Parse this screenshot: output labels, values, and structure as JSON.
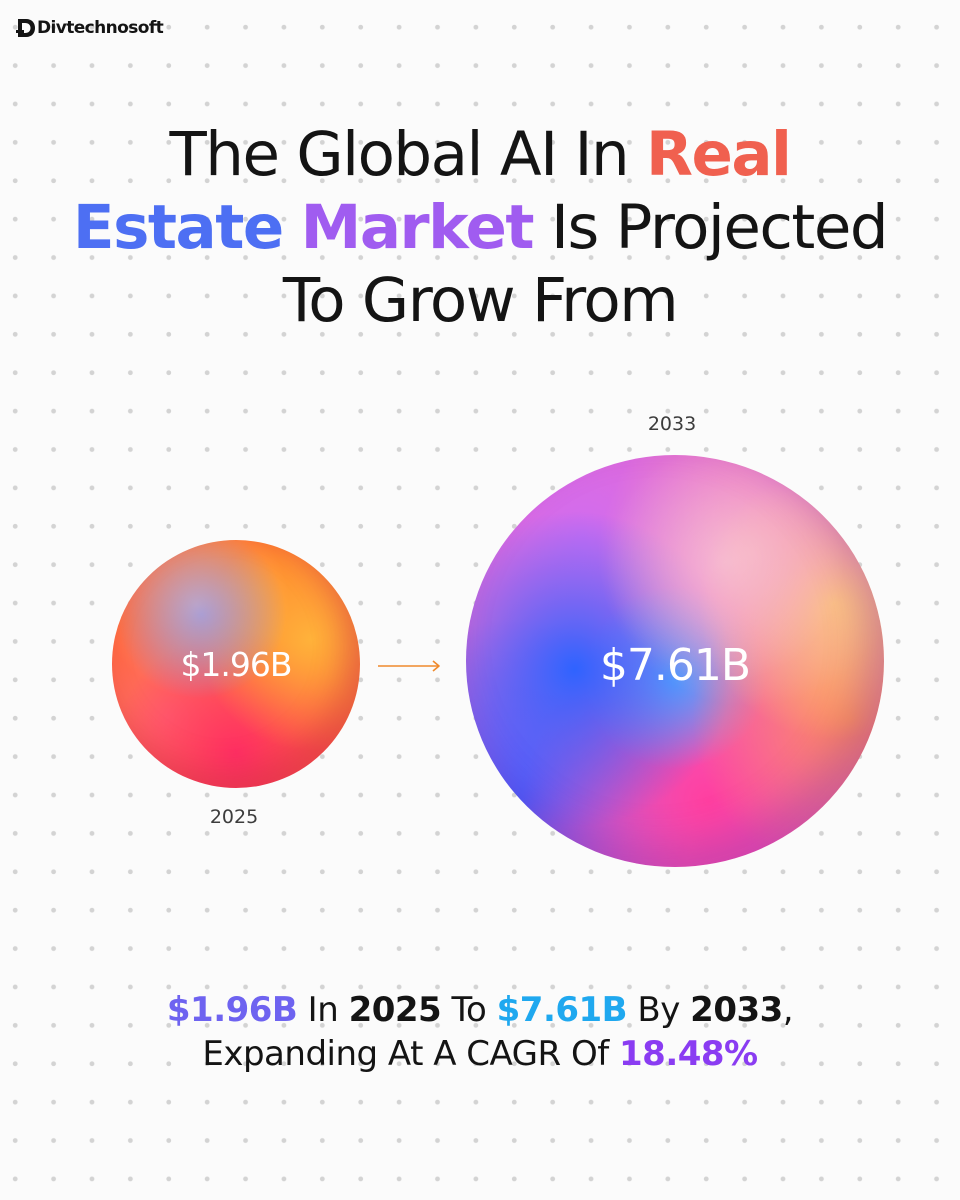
{
  "brand": {
    "logo_text": "Divtechnosoft"
  },
  "headline": {
    "part1": "The Global AI In ",
    "real": "Real",
    "estate": "Estate",
    "market": "Market",
    "part2": " Is Projected",
    "part3": "To Grow From"
  },
  "visual": {
    "start_year": "2025",
    "start_value": "$1.96B",
    "end_year": "2033",
    "end_value": "$7.61B"
  },
  "summary": {
    "start_value": "$1.96B",
    "in_text": " In ",
    "start_year": "2025",
    "to_text": " To ",
    "end_value": "$7.61B",
    "by_text": " By ",
    "end_year": "2033",
    "comma": ",",
    "line2_text": "Expanding At A CAGR Of ",
    "cagr": "18.48%"
  },
  "colors": {
    "headline_real": "#f0604f",
    "headline_estate": "#4d6ff3",
    "headline_market": "#a05cf0",
    "arrow": "#f08a2c",
    "summary_start_value": "#6e63f0",
    "summary_end_value": "#1fa8ef",
    "summary_cagr": "#8a3cf2"
  },
  "icons": {
    "logo": "divtechnosoft-logo-icon",
    "arrow": "arrow-right-icon"
  }
}
